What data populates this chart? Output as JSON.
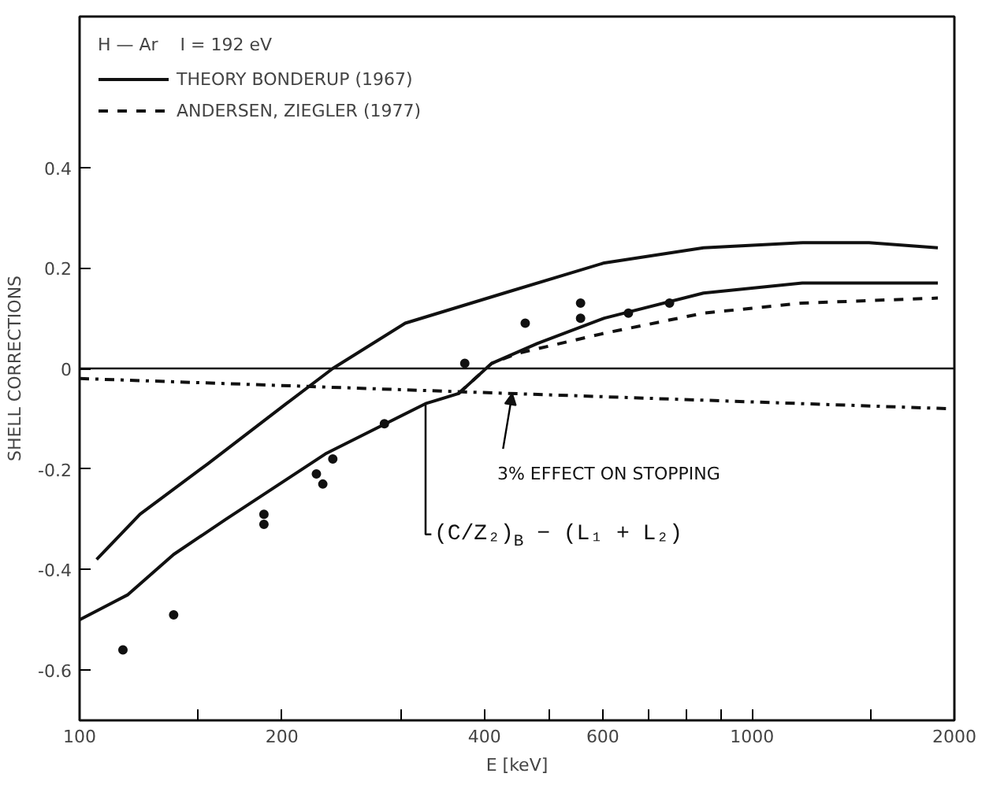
{
  "chart_data": {
    "type": "line",
    "xlabel": "E [keV]",
    "ylabel": "SHELL CORRECTIONS",
    "log": "x",
    "grid": false,
    "legend": "top left",
    "legend_title": "H — Ar    I = 192 eV",
    "xlim": [
      100,
      2000
    ],
    "ylim": [
      -0.7,
      0.7
    ],
    "xticks": [
      100,
      {
        "value": 150,
        "label": null
      },
      200,
      {
        "value": 300,
        "label": null
      },
      400,
      {
        "value": 500,
        "label": null
      },
      600,
      {
        "value": 700,
        "label": null
      },
      {
        "value": 800,
        "label": null
      },
      {
        "value": 900,
        "label": null
      },
      1000,
      {
        "value": 1500,
        "label": null
      },
      2000
    ],
    "yticks": [
      -0.6,
      -0.4,
      -0.2,
      {
        "value": 0,
        "label": "0"
      },
      0.2,
      0.4
    ],
    "ref_lines": [
      {
        "axis": "y",
        "value": 0,
        "color": "#111111",
        "line_style": "solid"
      }
    ],
    "series": [
      {
        "name": "THEORY BONDERUP (1967)",
        "color": "#111111",
        "line_style": "solid",
        "x": [
          106,
          123,
          155,
          203,
          238,
          305,
          428,
          603,
          847,
          1188,
          1493,
          1890
        ],
        "values": [
          -0.38,
          -0.29,
          -0.19,
          -0.07,
          0.0,
          0.09,
          0.15,
          0.21,
          0.24,
          0.25,
          0.25,
          0.24
        ]
      },
      {
        "color": "#111111",
        "line_style": "solid",
        "x": [
          100,
          118,
          138,
          165,
          232,
          285,
          327,
          366,
          410,
          480,
          603,
          847,
          1188,
          1890
        ],
        "values": [
          -0.5,
          -0.45,
          -0.37,
          -0.3,
          -0.17,
          -0.11,
          -0.07,
          -0.05,
          0.01,
          0.05,
          0.1,
          0.15,
          0.17,
          0.17
        ]
      },
      {
        "name": "ANDERSEN, ZIEGLER (1977)",
        "color": "#111111",
        "line_style": "dashed",
        "x": [
          366,
          410,
          448,
          603,
          847,
          1188,
          1890
        ],
        "values": [
          -0.05,
          0.01,
          0.03,
          0.07,
          0.11,
          0.13,
          0.14
        ]
      },
      {
        "color": "#111111",
        "line_style": "dashdot",
        "x": [
          100,
          1950
        ],
        "values": [
          -0.02,
          -0.08
        ]
      },
      {
        "type": "scatter",
        "color": "#111111",
        "marker": "circle",
        "x": [
          116,
          138,
          188,
          188,
          225,
          230,
          238,
          284,
          374,
          460,
          556,
          556,
          655,
          754
        ],
        "values": [
          -0.56,
          -0.49,
          -0.29,
          -0.31,
          -0.21,
          -0.23,
          -0.18,
          -0.11,
          0.01,
          0.09,
          0.13,
          0.1,
          0.11,
          0.13
        ]
      }
    ],
    "annotations": [
      {
        "text": "3% EFFECT ON STOPPING",
        "x": 440,
        "y": -0.05
      },
      {
        "text": "(C/Z₂)$_{B}$ − (L₁ + L₂)",
        "x": 327,
        "y": -0.07
      }
    ]
  }
}
